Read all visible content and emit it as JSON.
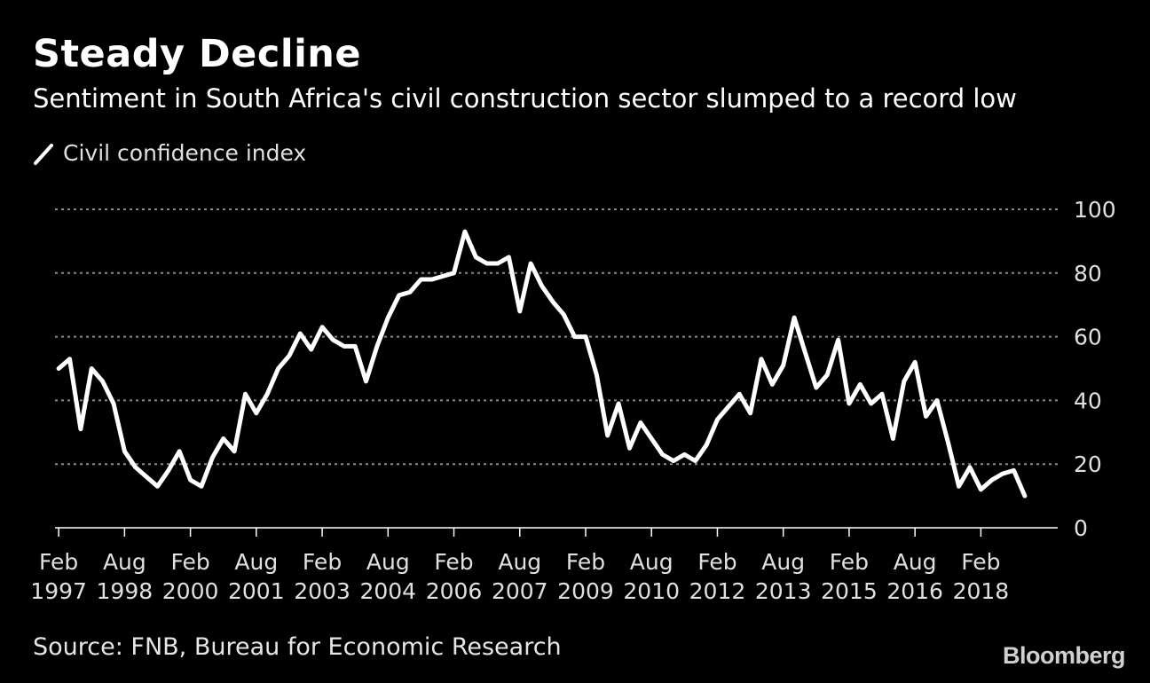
{
  "title": "Steady Decline",
  "subtitle": "Sentiment in South Africa's civil construction sector slumped to a record low",
  "source": "Source: FNB, Bureau for Economic Research",
  "brand": "Bloomberg",
  "colors": {
    "background": "#000000",
    "line": "#ffffff",
    "grid": "#8a8a8a",
    "text": "#e0e0e0"
  },
  "chart_data": {
    "type": "line",
    "title": "Steady Decline",
    "xlabel": "",
    "ylabel": "",
    "ylim": [
      0,
      100
    ],
    "xlim": [
      "1997-01",
      "2019-11"
    ],
    "grid": true,
    "legend": "top-left",
    "y_ticks": [
      0,
      20,
      40,
      60,
      80,
      100
    ],
    "x_ticks": [
      {
        "date": "1997-02",
        "label": [
          "Feb",
          "1997"
        ]
      },
      {
        "date": "1998-08",
        "label": [
          "Aug",
          "1998"
        ]
      },
      {
        "date": "2000-02",
        "label": [
          "Feb",
          "2000"
        ]
      },
      {
        "date": "2001-08",
        "label": [
          "Aug",
          "2001"
        ]
      },
      {
        "date": "2003-02",
        "label": [
          "Feb",
          "2003"
        ]
      },
      {
        "date": "2004-08",
        "label": [
          "Aug",
          "2004"
        ]
      },
      {
        "date": "2006-02",
        "label": [
          "Feb",
          "2006"
        ]
      },
      {
        "date": "2007-08",
        "label": [
          "Aug",
          "2007"
        ]
      },
      {
        "date": "2009-02",
        "label": [
          "Feb",
          "2009"
        ]
      },
      {
        "date": "2010-08",
        "label": [
          "Aug",
          "2010"
        ]
      },
      {
        "date": "2012-02",
        "label": [
          "Feb",
          "2012"
        ]
      },
      {
        "date": "2013-08",
        "label": [
          "Aug",
          "2013"
        ]
      },
      {
        "date": "2015-02",
        "label": [
          "Feb",
          "2015"
        ]
      },
      {
        "date": "2016-08",
        "label": [
          "Aug",
          "2016"
        ]
      },
      {
        "date": "2018-02",
        "label": [
          "Feb",
          "2018"
        ]
      }
    ],
    "series": [
      {
        "name": "Civil confidence index",
        "points": [
          [
            "1997-02",
            50
          ],
          [
            "1997-05",
            53
          ],
          [
            "1997-08",
            31
          ],
          [
            "1997-11",
            50
          ],
          [
            "1998-02",
            46
          ],
          [
            "1998-05",
            39
          ],
          [
            "1998-08",
            24
          ],
          [
            "1998-11",
            19
          ],
          [
            "1999-02",
            16
          ],
          [
            "1999-05",
            13
          ],
          [
            "1999-08",
            18
          ],
          [
            "1999-11",
            24
          ],
          [
            "2000-02",
            15
          ],
          [
            "2000-05",
            13
          ],
          [
            "2000-08",
            22
          ],
          [
            "2000-11",
            28
          ],
          [
            "2001-02",
            24
          ],
          [
            "2001-05",
            42
          ],
          [
            "2001-08",
            36
          ],
          [
            "2001-11",
            42
          ],
          [
            "2002-02",
            50
          ],
          [
            "2002-05",
            54
          ],
          [
            "2002-08",
            61
          ],
          [
            "2002-11",
            56
          ],
          [
            "2003-02",
            63
          ],
          [
            "2003-05",
            59
          ],
          [
            "2003-08",
            57
          ],
          [
            "2003-11",
            57
          ],
          [
            "2004-02",
            46
          ],
          [
            "2004-05",
            57
          ],
          [
            "2004-08",
            66
          ],
          [
            "2004-11",
            73
          ],
          [
            "2005-02",
            74
          ],
          [
            "2005-05",
            78
          ],
          [
            "2005-08",
            78
          ],
          [
            "2005-11",
            79
          ],
          [
            "2006-02",
            80
          ],
          [
            "2006-05",
            93
          ],
          [
            "2006-08",
            85
          ],
          [
            "2006-11",
            83
          ],
          [
            "2007-02",
            83
          ],
          [
            "2007-05",
            85
          ],
          [
            "2007-08",
            68
          ],
          [
            "2007-11",
            83
          ],
          [
            "2008-02",
            76
          ],
          [
            "2008-05",
            71
          ],
          [
            "2008-08",
            67
          ],
          [
            "2008-11",
            60
          ],
          [
            "2009-02",
            60
          ],
          [
            "2009-05",
            48
          ],
          [
            "2009-08",
            29
          ],
          [
            "2009-11",
            39
          ],
          [
            "2010-02",
            25
          ],
          [
            "2010-05",
            33
          ],
          [
            "2010-08",
            28
          ],
          [
            "2010-11",
            23
          ],
          [
            "2011-02",
            21
          ],
          [
            "2011-05",
            23
          ],
          [
            "2011-08",
            21
          ],
          [
            "2011-11",
            26
          ],
          [
            "2012-02",
            34
          ],
          [
            "2012-05",
            38
          ],
          [
            "2012-08",
            42
          ],
          [
            "2012-11",
            36
          ],
          [
            "2013-02",
            53
          ],
          [
            "2013-05",
            45
          ],
          [
            "2013-08",
            51
          ],
          [
            "2013-11",
            66
          ],
          [
            "2014-02",
            55
          ],
          [
            "2014-05",
            44
          ],
          [
            "2014-08",
            48
          ],
          [
            "2014-11",
            59
          ],
          [
            "2015-02",
            39
          ],
          [
            "2015-05",
            45
          ],
          [
            "2015-08",
            39
          ],
          [
            "2015-11",
            42
          ],
          [
            "2016-02",
            28
          ],
          [
            "2016-05",
            46
          ],
          [
            "2016-08",
            52
          ],
          [
            "2016-11",
            35
          ],
          [
            "2017-02",
            40
          ],
          [
            "2017-05",
            27
          ],
          [
            "2017-08",
            13
          ],
          [
            "2017-11",
            19
          ],
          [
            "2018-02",
            12
          ],
          [
            "2018-05",
            15
          ],
          [
            "2018-08",
            17
          ],
          [
            "2018-11",
            18
          ],
          [
            "2019-02",
            10
          ]
        ]
      }
    ]
  }
}
